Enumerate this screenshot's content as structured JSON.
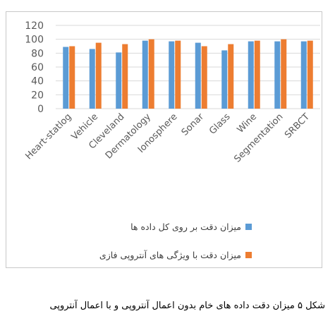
{
  "chart_data": {
    "type": "bar",
    "categories": [
      "Heart-statlog",
      "Vehicle",
      "Cleveland",
      "Dermatology",
      "Ionosphere",
      "Sonar",
      "Glass",
      "Wine",
      "Segmentation",
      "SRBCT"
    ],
    "series": [
      {
        "name": "میزان دقت بر روی کل داده ها",
        "values": [
          89,
          86,
          81,
          98,
          97,
          95,
          84,
          97,
          97,
          97
        ],
        "color": "#5B9BD5"
      },
      {
        "name": "میزان دقت با ویژگی های آنتروپی فازی",
        "values": [
          90,
          95,
          93,
          100,
          98,
          90,
          93,
          98,
          100,
          98
        ],
        "color": "#ED7D31"
      }
    ],
    "yticks": [
      "0",
      "20",
      "40",
      "60",
      "80",
      "100",
      "120"
    ],
    "ylim": [
      0,
      120
    ],
    "grid": true,
    "legend_position": "bottom"
  },
  "caption": "شکل ۵ میزان دقت داده های خام بدون اعمال آنتروپی و با اعمال آنتروپی"
}
